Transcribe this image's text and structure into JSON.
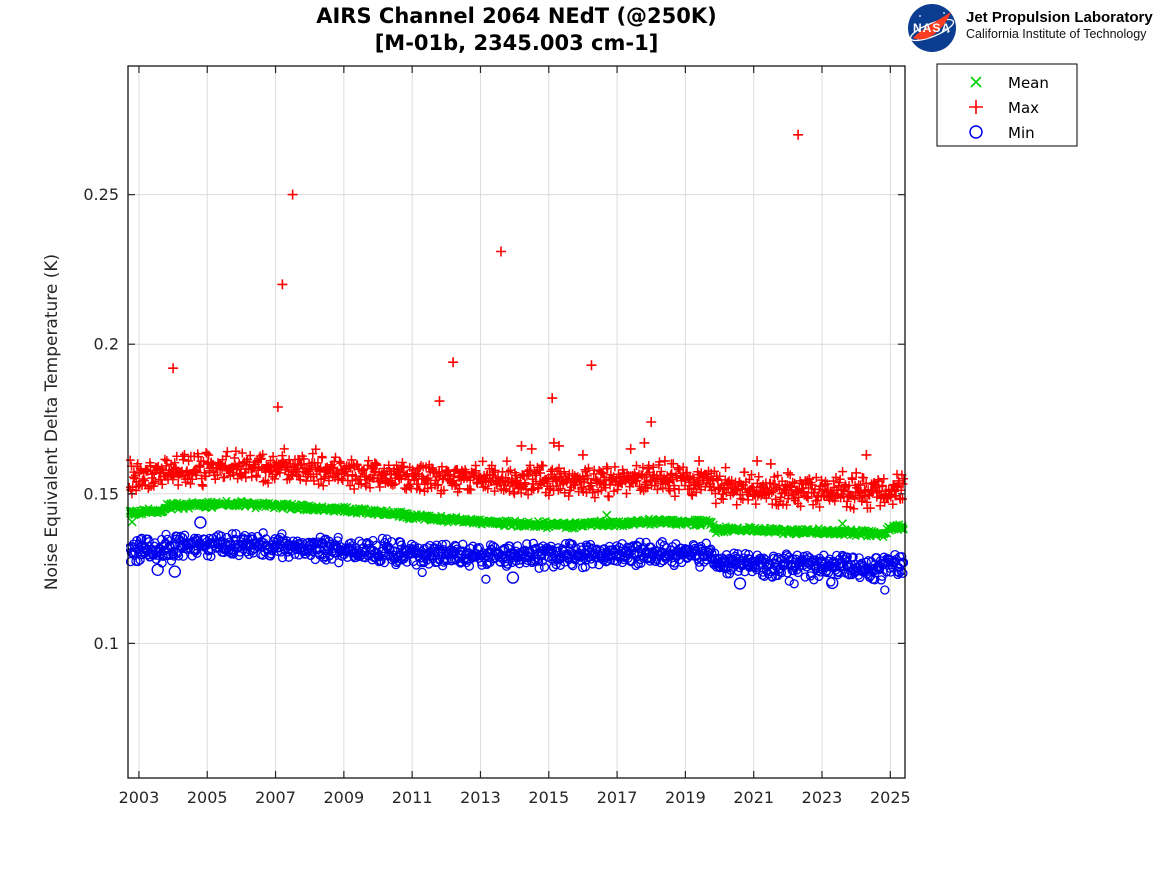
{
  "header": {
    "title_line1": "AIRS Channel 2064 NEdT (@250K)",
    "title_line2": "[M-01b, 2345.003 cm-1]"
  },
  "branding": {
    "nasa_label": "NASA",
    "org_name": "Jet Propulsion Laboratory",
    "org_sub": "California Institute of Technology",
    "meatball_blue": "#0b3d91",
    "swoosh_red": "#fc3d21"
  },
  "chart_data": {
    "type": "scatter",
    "title": "AIRS Channel 2064 NEdT (@250K)",
    "subtitle": "[M-01b, 2345.003 cm-1]",
    "xlabel": "",
    "ylabel": "Noise Equivalent Delta Temperature (K)",
    "xlim": [
      2002.68,
      2025.43
    ],
    "ylim": [
      0.055,
      0.293
    ],
    "grid": true,
    "grid_color": "#dcdcdc",
    "axis_color": "#262626",
    "legend_position": "outside-top-right",
    "x_ticks": [
      2003,
      2005,
      2007,
      2009,
      2011,
      2013,
      2015,
      2017,
      2019,
      2021,
      2023,
      2025
    ],
    "x_tick_labels": [
      "2003",
      "2005",
      "2007",
      "2009",
      "2011",
      "2013",
      "2015",
      "2017",
      "2019",
      "2021",
      "2023",
      "2025"
    ],
    "y_ticks": [
      0.1,
      0.15,
      0.2,
      0.25
    ],
    "y_tick_labels": [
      "0.1",
      "0.15",
      "0.2",
      "0.25"
    ],
    "sampling": {
      "start": 2002.72,
      "end": 2025.4,
      "points_per_year": 52,
      "seed": 42
    },
    "series": [
      {
        "name": "Mean",
        "marker": "x",
        "color": "#00d000",
        "noise_halfwidth": 0.0013,
        "trend": [
          [
            2002.72,
            0.1438
          ],
          [
            2003.7,
            0.1441
          ],
          [
            2003.78,
            0.1458
          ],
          [
            2005.5,
            0.1466
          ],
          [
            2007.0,
            0.1462
          ],
          [
            2008.0,
            0.1452
          ],
          [
            2010.0,
            0.1438
          ],
          [
            2012.0,
            0.1415
          ],
          [
            2014.0,
            0.14
          ],
          [
            2015.5,
            0.1394
          ],
          [
            2016.5,
            0.14
          ],
          [
            2018.3,
            0.1407
          ],
          [
            2019.75,
            0.1403
          ],
          [
            2019.85,
            0.1381
          ],
          [
            2021.0,
            0.1378
          ],
          [
            2023.5,
            0.1372
          ],
          [
            2024.85,
            0.1366
          ],
          [
            2024.95,
            0.1384
          ],
          [
            2025.4,
            0.1388
          ]
        ],
        "outliers": [
          [
            2002.8,
            0.1406
          ],
          [
            2016.7,
            0.1428
          ],
          [
            2023.6,
            0.14
          ]
        ]
      },
      {
        "name": "Max",
        "marker": "+",
        "color": "#ff0000",
        "noise_halfwidth": 0.006,
        "spike_rate": 0.06,
        "spike_max": 0.008,
        "trend": [
          [
            2002.72,
            0.155
          ],
          [
            2003.2,
            0.156
          ],
          [
            2004.5,
            0.158
          ],
          [
            2006.0,
            0.1588
          ],
          [
            2008.0,
            0.1578
          ],
          [
            2010.0,
            0.1565
          ],
          [
            2012.0,
            0.1552
          ],
          [
            2014.0,
            0.1546
          ],
          [
            2016.0,
            0.154
          ],
          [
            2018.3,
            0.1548
          ],
          [
            2019.75,
            0.154
          ],
          [
            2019.9,
            0.1522
          ],
          [
            2021.0,
            0.1516
          ],
          [
            2023.0,
            0.1506
          ],
          [
            2024.6,
            0.15
          ],
          [
            2025.1,
            0.1512
          ],
          [
            2025.4,
            0.1518
          ]
        ],
        "outliers": [
          [
            2004.0,
            0.192
          ],
          [
            2007.07,
            0.179
          ],
          [
            2007.2,
            0.22
          ],
          [
            2007.5,
            0.25
          ],
          [
            2011.8,
            0.181
          ],
          [
            2012.2,
            0.194
          ],
          [
            2013.6,
            0.231
          ],
          [
            2014.2,
            0.166
          ],
          [
            2014.5,
            0.165
          ],
          [
            2015.1,
            0.182
          ],
          [
            2015.15,
            0.167
          ],
          [
            2015.3,
            0.166
          ],
          [
            2016.0,
            0.163
          ],
          [
            2016.25,
            0.193
          ],
          [
            2017.4,
            0.165
          ],
          [
            2017.8,
            0.167
          ],
          [
            2018.0,
            0.174
          ],
          [
            2018.4,
            0.161
          ],
          [
            2019.4,
            0.161
          ],
          [
            2021.1,
            0.161
          ],
          [
            2021.5,
            0.16
          ],
          [
            2022.0,
            0.157
          ],
          [
            2022.3,
            0.27
          ],
          [
            2024.0,
            0.157
          ],
          [
            2024.3,
            0.163
          ]
        ]
      },
      {
        "name": "Min",
        "marker": "o",
        "color": "#0000ee",
        "noise_halfwidth": 0.0046,
        "dip_rate": 0.05,
        "dip_max": 0.008,
        "trend": [
          [
            2002.72,
            0.1308
          ],
          [
            2003.7,
            0.1312
          ],
          [
            2003.8,
            0.1324
          ],
          [
            2005.0,
            0.133
          ],
          [
            2006.5,
            0.1328
          ],
          [
            2008.0,
            0.1318
          ],
          [
            2010.0,
            0.1308
          ],
          [
            2012.0,
            0.1296
          ],
          [
            2014.0,
            0.129
          ],
          [
            2016.0,
            0.1298
          ],
          [
            2018.3,
            0.13
          ],
          [
            2019.75,
            0.1296
          ],
          [
            2019.9,
            0.1272
          ],
          [
            2021.0,
            0.1262
          ],
          [
            2023.0,
            0.1258
          ],
          [
            2024.6,
            0.1252
          ],
          [
            2025.4,
            0.1262
          ]
        ],
        "outliers": [
          [
            2003.55,
            0.1246
          ],
          [
            2004.05,
            0.124
          ],
          [
            2004.8,
            0.1404
          ],
          [
            2013.95,
            0.122
          ],
          [
            2020.6,
            0.12
          ],
          [
            2023.3,
            0.1202
          ]
        ]
      }
    ]
  }
}
